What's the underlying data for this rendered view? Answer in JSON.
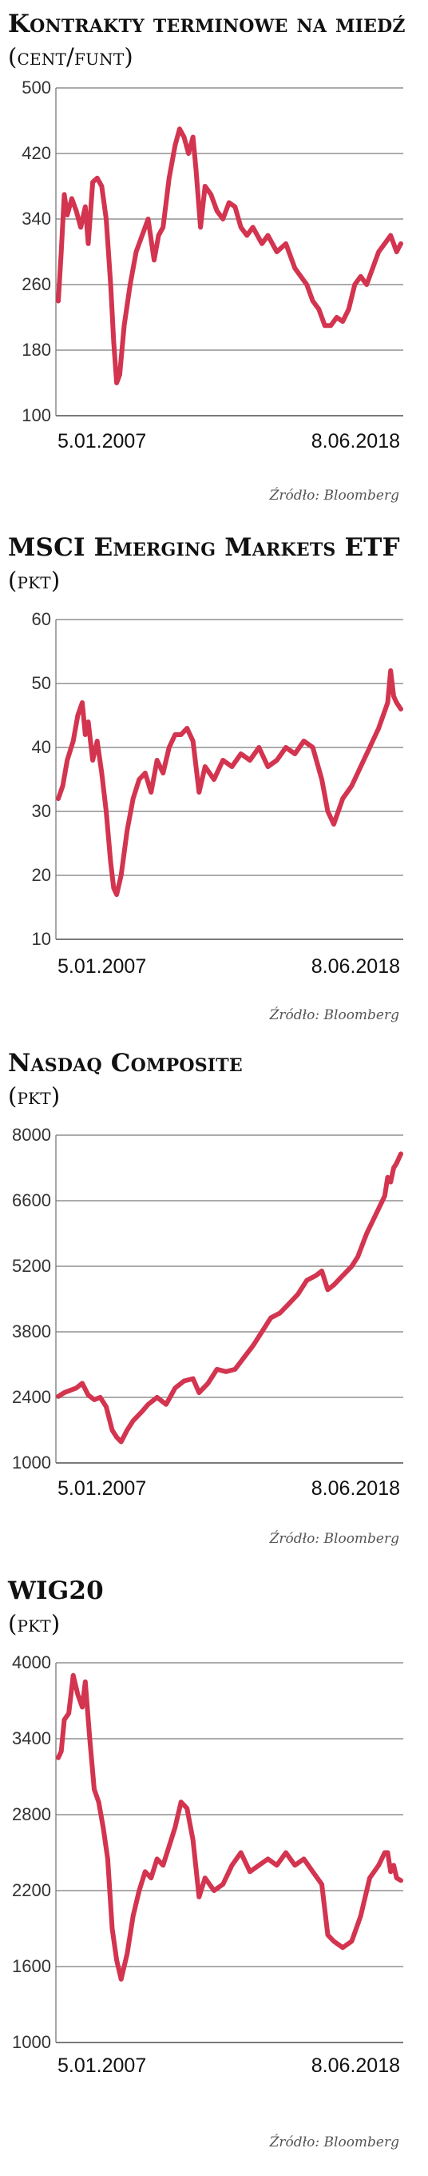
{
  "chart_data": [
    {
      "type": "line",
      "title": "Kontrakty terminowe na miedź",
      "unit": "(cent/funt)",
      "yticks": [
        100,
        180,
        260,
        340,
        420,
        500
      ],
      "ylim": [
        100,
        500
      ],
      "x_labels": [
        "5.01.2007",
        "8.06.2018"
      ],
      "source": "Źródło: Bloomberg",
      "line_color": "#d3344f",
      "series": [
        {
          "x": [
            2007.0,
            2007.1,
            2007.2,
            2007.3,
            2007.45,
            2007.6,
            2007.75,
            2007.9,
            2008.0,
            2008.15,
            2008.3,
            2008.45,
            2008.6,
            2008.75,
            2008.85,
            2008.95,
            2009.05,
            2009.2,
            2009.4,
            2009.6,
            2009.8,
            2010.0,
            2010.2,
            2010.35,
            2010.5,
            2010.7,
            2010.9,
            2011.05,
            2011.2,
            2011.35,
            2011.5,
            2011.6,
            2011.75,
            2011.9,
            2012.1,
            2012.3,
            2012.5,
            2012.7,
            2012.9,
            2013.1,
            2013.3,
            2013.5,
            2013.8,
            2014.0,
            2014.3,
            2014.6,
            2014.9,
            2015.1,
            2015.3,
            2015.5,
            2015.7,
            2015.9,
            2016.1,
            2016.3,
            2016.5,
            2016.7,
            2016.9,
            2017.1,
            2017.3,
            2017.5,
            2017.7,
            2017.9,
            2018.1,
            2018.3,
            2018.44
          ],
          "y": [
            240,
            300,
            370,
            345,
            365,
            350,
            330,
            355,
            310,
            385,
            390,
            380,
            340,
            260,
            190,
            140,
            150,
            210,
            260,
            300,
            320,
            340,
            290,
            320,
            330,
            390,
            430,
            450,
            440,
            420,
            440,
            400,
            330,
            380,
            370,
            350,
            340,
            360,
            355,
            330,
            320,
            330,
            310,
            320,
            300,
            310,
            280,
            270,
            260,
            240,
            230,
            210,
            210,
            220,
            215,
            230,
            260,
            270,
            260,
            280,
            300,
            310,
            320,
            300,
            310
          ]
        }
      ]
    },
    {
      "type": "line",
      "title": "MSCI Emerging Markets ETF",
      "unit": "(pkt)",
      "yticks": [
        10,
        20,
        30,
        40,
        50,
        60
      ],
      "ylim": [
        10,
        60
      ],
      "x_labels": [
        "5.01.2007",
        "8.06.2018"
      ],
      "source": "Źródło: Bloomberg",
      "line_color": "#d3344f",
      "series": [
        {
          "x": [
            2007.0,
            2007.15,
            2007.3,
            2007.5,
            2007.65,
            2007.8,
            2007.9,
            2008.0,
            2008.15,
            2008.3,
            2008.45,
            2008.6,
            2008.75,
            2008.85,
            2008.95,
            2009.1,
            2009.3,
            2009.5,
            2009.7,
            2009.9,
            2010.1,
            2010.3,
            2010.5,
            2010.7,
            2010.9,
            2011.1,
            2011.3,
            2011.5,
            2011.7,
            2011.9,
            2012.2,
            2012.5,
            2012.8,
            2013.1,
            2013.4,
            2013.7,
            2014.0,
            2014.3,
            2014.6,
            2014.9,
            2015.2,
            2015.5,
            2015.8,
            2016.0,
            2016.2,
            2016.5,
            2016.8,
            2017.1,
            2017.4,
            2017.7,
            2018.0,
            2018.1,
            2018.2,
            2018.3,
            2018.44
          ],
          "y": [
            32,
            34,
            38,
            41,
            45,
            47,
            42,
            44,
            38,
            41,
            36,
            30,
            22,
            18,
            17,
            20,
            27,
            32,
            35,
            36,
            33,
            38,
            36,
            40,
            42,
            42,
            43,
            41,
            33,
            37,
            35,
            38,
            37,
            39,
            38,
            40,
            37,
            38,
            40,
            39,
            41,
            40,
            35,
            30,
            28,
            32,
            34,
            37,
            40,
            43,
            47,
            52,
            48,
            47,
            46
          ]
        }
      ]
    },
    {
      "type": "line",
      "title": "Nasdaq Composite",
      "unit": "(pkt)",
      "yticks": [
        1000,
        2400,
        3800,
        5200,
        6600,
        8000
      ],
      "ylim": [
        1000,
        8000
      ],
      "x_labels": [
        "5.01.2007",
        "8.06.2018"
      ],
      "source": "Źródło: Bloomberg",
      "line_color": "#d3344f",
      "series": [
        {
          "x": [
            2007.0,
            2007.2,
            2007.4,
            2007.6,
            2007.8,
            2008.0,
            2008.2,
            2008.4,
            2008.6,
            2008.8,
            2008.95,
            2009.1,
            2009.3,
            2009.5,
            2009.8,
            2010.0,
            2010.3,
            2010.6,
            2010.9,
            2011.2,
            2011.5,
            2011.7,
            2012.0,
            2012.3,
            2012.6,
            2012.9,
            2013.2,
            2013.5,
            2013.8,
            2014.1,
            2014.4,
            2014.7,
            2015.0,
            2015.3,
            2015.6,
            2015.8,
            2016.0,
            2016.2,
            2016.5,
            2016.8,
            2017.0,
            2017.3,
            2017.6,
            2017.9,
            2018.0,
            2018.1,
            2018.2,
            2018.3,
            2018.44
          ],
          "y": [
            2420,
            2500,
            2550,
            2600,
            2700,
            2450,
            2350,
            2400,
            2200,
            1700,
            1550,
            1450,
            1700,
            1900,
            2100,
            2250,
            2400,
            2250,
            2600,
            2750,
            2800,
            2500,
            2700,
            3000,
            2950,
            3000,
            3250,
            3500,
            3800,
            4100,
            4200,
            4400,
            4600,
            4900,
            5000,
            5100,
            4700,
            4800,
            5000,
            5200,
            5400,
            5900,
            6300,
            6700,
            7100,
            7000,
            7300,
            7400,
            7600
          ]
        }
      ]
    },
    {
      "type": "line",
      "title": "WIG20",
      "unit": "(pkt)",
      "yticks": [
        1000,
        1600,
        2200,
        2800,
        3400,
        4000
      ],
      "ylim": [
        1000,
        4000
      ],
      "x_labels": [
        "5.01.2007",
        "8.06.2018"
      ],
      "source": "Źródło: Bloomberg",
      "line_color": "#d3344f",
      "series": [
        {
          "x": [
            2007.0,
            2007.1,
            2007.2,
            2007.35,
            2007.5,
            2007.65,
            2007.8,
            2007.9,
            2008.05,
            2008.2,
            2008.35,
            2008.5,
            2008.65,
            2008.8,
            2008.95,
            2009.1,
            2009.3,
            2009.5,
            2009.7,
            2009.9,
            2010.1,
            2010.3,
            2010.5,
            2010.7,
            2010.9,
            2011.1,
            2011.3,
            2011.5,
            2011.7,
            2011.9,
            2012.2,
            2012.5,
            2012.8,
            2013.1,
            2013.4,
            2013.7,
            2014.0,
            2014.3,
            2014.6,
            2014.9,
            2015.2,
            2015.5,
            2015.8,
            2016.0,
            2016.2,
            2016.5,
            2016.8,
            2017.1,
            2017.4,
            2017.7,
            2017.9,
            2018.0,
            2018.1,
            2018.2,
            2018.3,
            2018.44
          ],
          "y": [
            3250,
            3300,
            3550,
            3600,
            3900,
            3750,
            3650,
            3850,
            3400,
            3000,
            2900,
            2700,
            2450,
            1900,
            1650,
            1500,
            1700,
            2000,
            2200,
            2350,
            2300,
            2450,
            2400,
            2550,
            2700,
            2900,
            2850,
            2600,
            2150,
            2300,
            2200,
            2250,
            2400,
            2500,
            2350,
            2400,
            2450,
            2400,
            2500,
            2400,
            2450,
            2350,
            2250,
            1850,
            1800,
            1750,
            1800,
            2000,
            2300,
            2400,
            2500,
            2500,
            2350,
            2400,
            2300,
            2280
          ]
        }
      ]
    }
  ]
}
